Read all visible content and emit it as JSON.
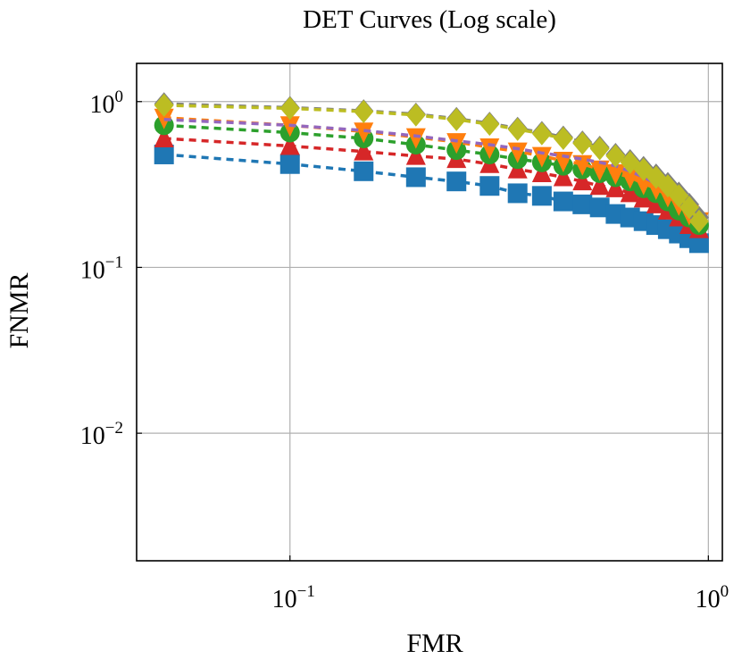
{
  "chart_data": {
    "type": "line",
    "title": "DET Curves (Log scale)",
    "xlabel": "FMR",
    "ylabel": "FNMR",
    "xscale": "log",
    "yscale": "log",
    "xlim": [
      0.043,
      1.08
    ],
    "ylim": [
      0.0017,
      1.7
    ],
    "grid": true,
    "legend": "none",
    "x_ticks": [
      {
        "value": 0.1,
        "base": "10",
        "exp": "−1"
      },
      {
        "value": 1,
        "base": "10",
        "exp": "0"
      }
    ],
    "y_ticks": [
      {
        "value": 0.01,
        "base": "10",
        "exp": "−2"
      },
      {
        "value": 0.1,
        "base": "10",
        "exp": "−1"
      },
      {
        "value": 1,
        "base": "10",
        "exp": "0"
      }
    ],
    "x": [
      0.05,
      0.1,
      0.15,
      0.2,
      0.25,
      0.3,
      0.35,
      0.4,
      0.45,
      0.5,
      0.55,
      0.6,
      0.65,
      0.7,
      0.75,
      0.8,
      0.85,
      0.9,
      0.95
    ],
    "series": [
      {
        "color": "#1f77b4",
        "marker": "square",
        "values": [
          0.48,
          0.42,
          0.38,
          0.35,
          0.33,
          0.31,
          0.28,
          0.27,
          0.25,
          0.24,
          0.23,
          0.21,
          0.2,
          0.19,
          0.18,
          0.17,
          0.16,
          0.15,
          0.14
        ]
      },
      {
        "color": "#d62728",
        "marker": "triangle-up",
        "values": [
          0.6,
          0.54,
          0.5,
          0.47,
          0.45,
          0.42,
          0.39,
          0.37,
          0.35,
          0.33,
          0.31,
          0.3,
          0.28,
          0.26,
          0.24,
          0.22,
          0.2,
          0.18,
          0.17
        ]
      },
      {
        "color": "#2ca02c",
        "marker": "circle",
        "values": [
          0.72,
          0.65,
          0.6,
          0.55,
          0.51,
          0.48,
          0.45,
          0.43,
          0.41,
          0.39,
          0.37,
          0.35,
          0.33,
          0.3,
          0.28,
          0.25,
          0.22,
          0.2,
          0.18
        ]
      },
      {
        "color": "#ff7f0e",
        "marker": "triangle-down",
        "values": [
          0.8,
          0.72,
          0.66,
          0.61,
          0.57,
          0.53,
          0.5,
          0.47,
          0.44,
          0.42,
          0.39,
          0.37,
          0.35,
          0.32,
          0.3,
          0.27,
          0.24,
          0.21,
          0.19
        ]
      },
      {
        "color": "#9467bd",
        "marker": "none",
        "values": [
          0.78,
          0.72,
          0.67,
          0.62,
          0.58,
          0.55,
          0.52,
          0.49,
          0.47,
          0.45,
          0.43,
          0.41,
          0.38,
          0.35,
          0.32,
          0.29,
          0.25,
          0.22,
          0.2
        ]
      },
      {
        "color": "#7f7f7f",
        "marker": "diamond",
        "values": [
          0.97,
          0.92,
          0.88,
          0.84,
          0.79,
          0.74,
          0.69,
          0.65,
          0.61,
          0.57,
          0.53,
          0.48,
          0.44,
          0.4,
          0.36,
          0.32,
          0.28,
          0.24,
          0.2
        ]
      },
      {
        "color": "#bcbd22",
        "marker": "diamond",
        "values": [
          0.95,
          0.91,
          0.87,
          0.83,
          0.78,
          0.73,
          0.68,
          0.64,
          0.6,
          0.56,
          0.52,
          0.47,
          0.43,
          0.39,
          0.35,
          0.31,
          0.27,
          0.23,
          0.19
        ]
      }
    ]
  }
}
